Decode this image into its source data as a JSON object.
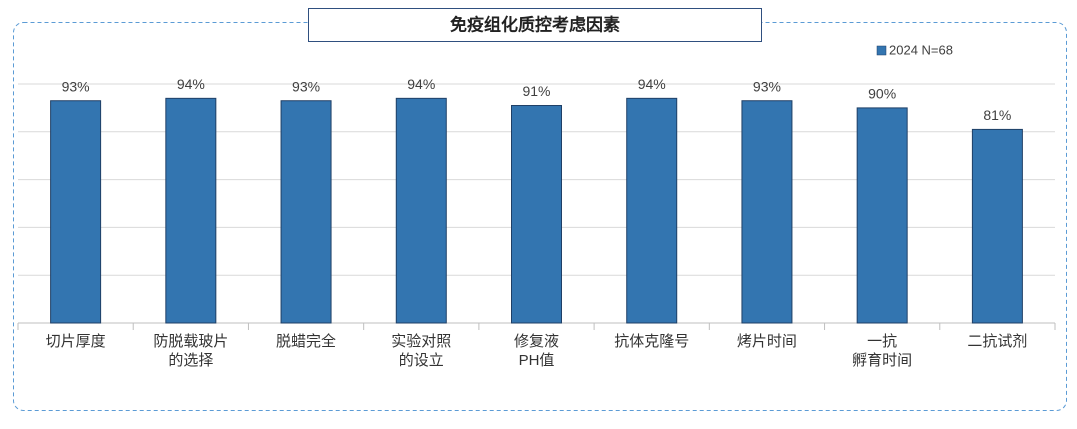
{
  "chart_data": {
    "type": "bar",
    "title": "免疫组化质控考虑因素",
    "categories": [
      [
        "切片厚度"
      ],
      [
        "防脱载玻片",
        "的选择"
      ],
      [
        "脱蜡完全"
      ],
      [
        "实验对照",
        "的设立"
      ],
      [
        "修复液",
        "PH值"
      ],
      [
        "抗体克隆号"
      ],
      [
        "烤片时间"
      ],
      [
        "一抗",
        "孵育时间"
      ],
      [
        "二抗试剂"
      ]
    ],
    "series": [
      {
        "name": "2024 N=68",
        "color": "#3375b0",
        "values": [
          93,
          94,
          93,
          94,
          91,
          94,
          93,
          90,
          81
        ],
        "value_labels": [
          "93%",
          "94%",
          "93%",
          "94%",
          "91%",
          "94%",
          "93%",
          "90%",
          "81%"
        ]
      }
    ],
    "ylim": [
      0,
      100
    ],
    "yticks": [
      0,
      20,
      40,
      60,
      80,
      100
    ],
    "grid": true,
    "legend": "top-right"
  }
}
